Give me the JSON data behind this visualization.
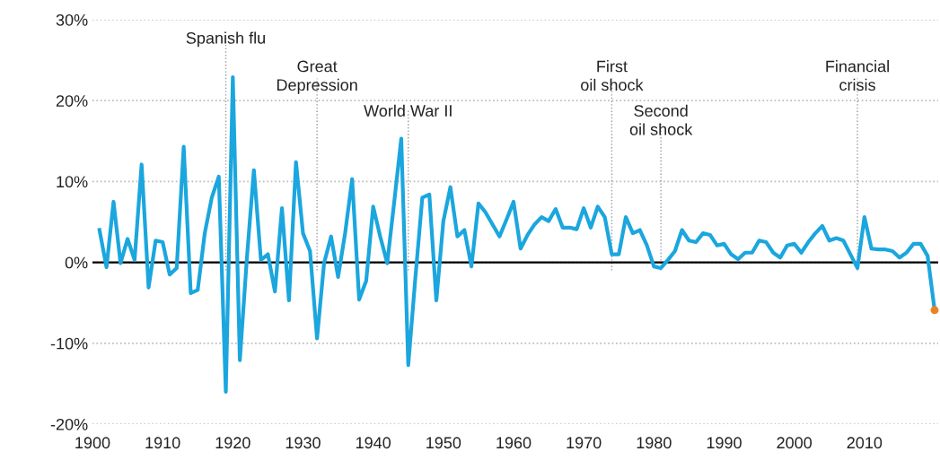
{
  "chart_data": {
    "type": "line",
    "x": [
      1901,
      1902,
      1903,
      1904,
      1905,
      1906,
      1907,
      1908,
      1909,
      1910,
      1911,
      1912,
      1913,
      1914,
      1915,
      1916,
      1917,
      1918,
      1919,
      1920,
      1921,
      1922,
      1923,
      1924,
      1925,
      1926,
      1927,
      1928,
      1929,
      1930,
      1931,
      1932,
      1933,
      1934,
      1935,
      1936,
      1937,
      1938,
      1939,
      1940,
      1941,
      1942,
      1943,
      1944,
      1945,
      1946,
      1947,
      1948,
      1949,
      1950,
      1951,
      1952,
      1953,
      1954,
      1955,
      1956,
      1957,
      1958,
      1959,
      1960,
      1961,
      1962,
      1963,
      1964,
      1965,
      1966,
      1967,
      1968,
      1969,
      1970,
      1971,
      1972,
      1973,
      1974,
      1975,
      1976,
      1977,
      1978,
      1979,
      1980,
      1981,
      1982,
      1983,
      1984,
      1985,
      1986,
      1987,
      1988,
      1989,
      1990,
      1991,
      1992,
      1993,
      1994,
      1995,
      1996,
      1997,
      1998,
      1999,
      2000,
      2001,
      2002,
      2003,
      2004,
      2005,
      2006,
      2007,
      2008,
      2009,
      2010,
      2011,
      2012,
      2013,
      2014,
      2015,
      2016,
      2017,
      2018,
      2019,
      2020
    ],
    "series": [
      {
        "color": "#1ba6de",
        "values": [
          4.0,
          -0.6,
          7.5,
          -0.1,
          2.9,
          0.3,
          12.1,
          -3.1,
          2.7,
          2.5,
          -1.5,
          -0.7,
          14.3,
          -3.8,
          -3.4,
          3.6,
          8.0,
          10.6,
          -16.0,
          22.9,
          -12.1,
          0.5,
          11.4,
          0.3,
          1.0,
          -3.6,
          6.7,
          -4.7,
          12.4,
          3.6,
          1.4,
          -9.4,
          -0.1,
          3.2,
          -1.8,
          3.6,
          10.3,
          -4.6,
          -2.3,
          6.9,
          3.2,
          -0.1,
          7.5,
          15.3,
          -12.7,
          -2.0,
          8.0,
          8.4,
          -4.7,
          5.1,
          9.3,
          3.2,
          4.0,
          -0.5,
          7.3,
          6.2,
          4.7,
          3.2,
          5.3,
          7.5,
          1.7,
          3.4,
          4.7,
          5.6,
          5.1,
          6.6,
          4.3,
          4.3,
          4.1,
          6.7,
          4.3,
          6.9,
          5.6,
          1.0,
          1.0,
          5.6,
          3.6,
          4.0,
          2.1,
          -0.5,
          -0.7,
          0.3,
          1.4,
          4.0,
          2.7,
          2.5,
          3.6,
          3.4,
          2.1,
          2.3,
          1.0,
          0.4,
          1.2,
          1.2,
          2.7,
          2.5,
          1.2,
          0.6,
          2.1,
          2.3,
          1.2,
          2.5,
          3.6,
          4.5,
          2.7,
          3.0,
          2.7,
          1.0,
          -0.7,
          5.6,
          1.7,
          1.6,
          1.6,
          1.4,
          0.6,
          1.2,
          2.3,
          2.3,
          0.8,
          -5.9
        ]
      },
      {
        "type": "scatter",
        "color": "#f07f22",
        "marker": "circle",
        "x": [
          2020
        ],
        "values": [
          -5.9
        ]
      }
    ],
    "xlim": [
      1900,
      2020.5
    ],
    "xticks": [
      1900,
      1910,
      1920,
      1930,
      1940,
      1950,
      1960,
      1970,
      1980,
      1990,
      2000,
      2010
    ],
    "ylim": [
      -20,
      30
    ],
    "yticks": [
      {
        "value": -20,
        "label": "-20%"
      },
      {
        "value": -10,
        "label": "-10%"
      },
      {
        "value": 0,
        "label": "0%"
      },
      {
        "value": 10,
        "label": "10%"
      },
      {
        "value": 20,
        "label": "20%"
      },
      {
        "value": 30,
        "label": "30%"
      }
    ],
    "grid": "y",
    "marker": "none",
    "line_style": "solid",
    "legend": false,
    "ref_lines": [
      {
        "axis": "y",
        "value": 0,
        "color": "#000000",
        "line_style": "solid"
      },
      {
        "axis": "x",
        "value": 1919,
        "label": "Spanish flu",
        "color": "#999999",
        "line_style": "dotted"
      },
      {
        "axis": "x",
        "value": 1932,
        "label": "Great\nDepression",
        "color": "#999999",
        "line_style": "dotted"
      },
      {
        "axis": "x",
        "value": 1945,
        "label": "World War II",
        "color": "#999999",
        "line_style": "dotted"
      },
      {
        "axis": "x",
        "value": 1974,
        "label": "First\noil shock",
        "color": "#999999",
        "line_style": "dotted"
      },
      {
        "axis": "x",
        "value": 1981,
        "label": "Second\noil shock",
        "color": "#999999",
        "line_style": "dotted"
      },
      {
        "axis": "x",
        "value": 2009,
        "label": "Financial\ncrisis",
        "color": "#999999",
        "line_style": "dotted"
      }
    ]
  }
}
